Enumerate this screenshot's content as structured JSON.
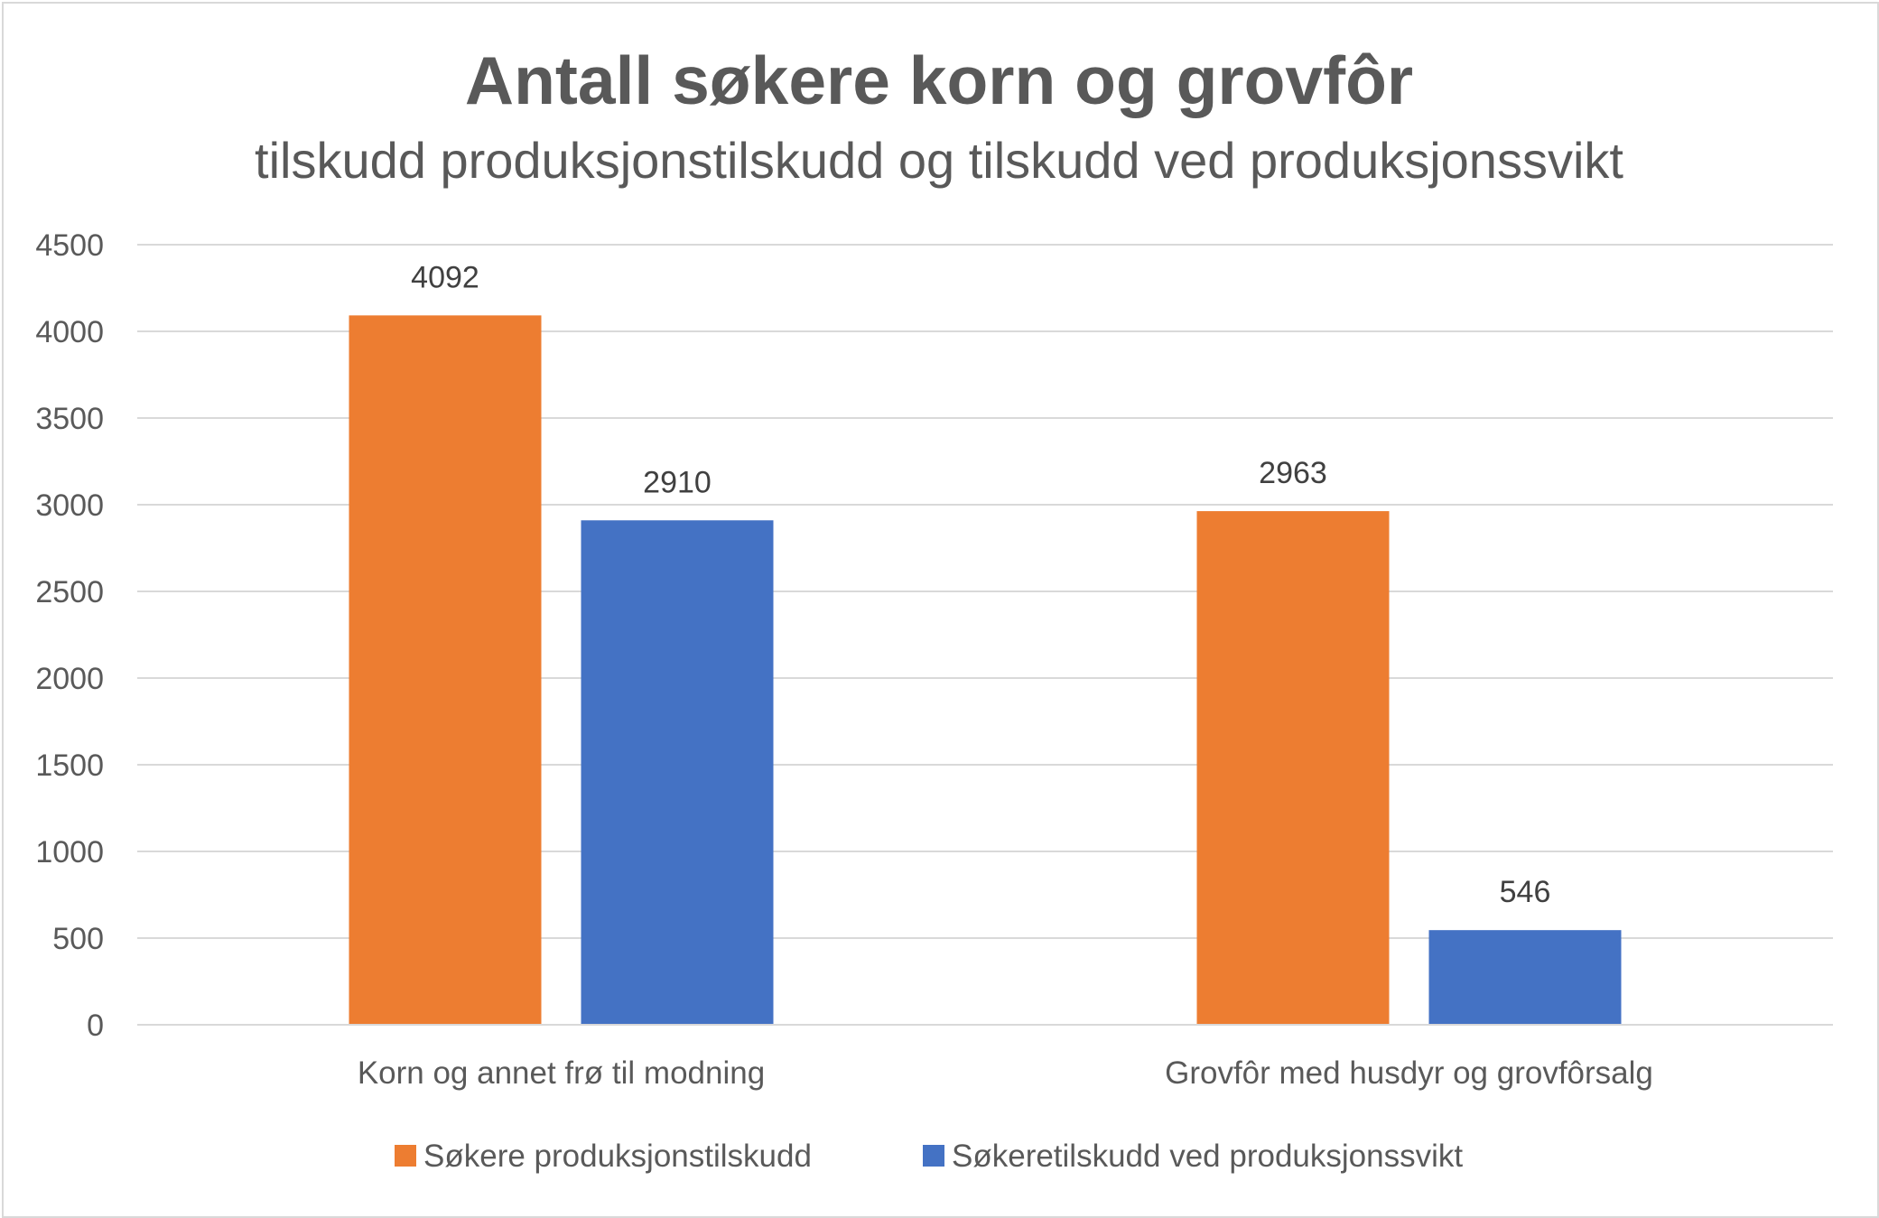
{
  "chart_data": {
    "type": "bar",
    "title": "Antall søkere korn og grovfôr",
    "subtitle": "tilskudd produksjonstilskudd og tilskudd ved produksjonssvikt",
    "categories": [
      "Korn og annet frø til modning",
      "Grovfôr med husdyr og grovfôrsalg"
    ],
    "series": [
      {
        "name": "Søkere produksjonstilskudd",
        "color": "#ED7D31",
        "values": [
          4092,
          2963
        ]
      },
      {
        "name": "Søkeretilskudd ved produksjonssvikt",
        "color": "#4472C4",
        "values": [
          2910,
          546
        ]
      }
    ],
    "ylim": [
      0,
      4500
    ],
    "yticks": [
      "0",
      "500",
      "1000",
      "1500",
      "2000",
      "2500",
      "3000",
      "3500",
      "4000",
      "4500"
    ],
    "grid": true,
    "legend_position": "bottom"
  }
}
